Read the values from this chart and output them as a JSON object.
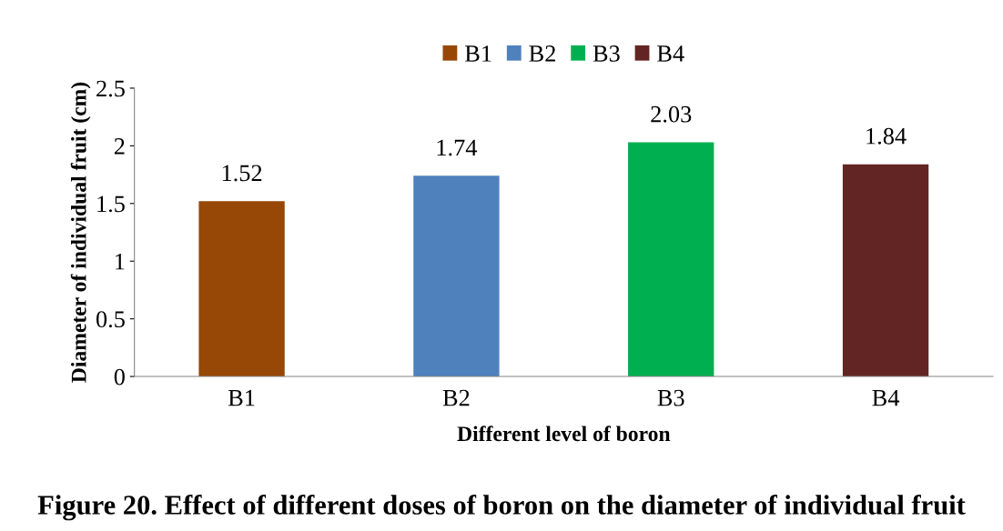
{
  "chart_data": {
    "type": "bar",
    "title": "Figure 20. Effect of different doses of boron on the diameter of individual fruit",
    "xlabel": "Different level of boron",
    "ylabel": "Diameter of individual fruit (cm)",
    "categories": [
      "B1",
      "B2",
      "B3",
      "B4"
    ],
    "series": [
      {
        "name": "B1",
        "color": "#974706",
        "values": [
          1.52,
          null,
          null,
          null
        ]
      },
      {
        "name": "B2",
        "color": "#4f81bd",
        "values": [
          null,
          1.74,
          null,
          null
        ]
      },
      {
        "name": "B3",
        "color": "#00b050",
        "values": [
          null,
          null,
          2.03,
          null
        ]
      },
      {
        "name": "B4",
        "color": "#632523",
        "values": [
          null,
          null,
          null,
          1.84
        ]
      }
    ],
    "ylim": [
      0,
      2.5
    ],
    "yticks": [
      0,
      0.5,
      1,
      1.5,
      2,
      2.5
    ],
    "data_labels": true,
    "legend": "top",
    "grid": false
  }
}
